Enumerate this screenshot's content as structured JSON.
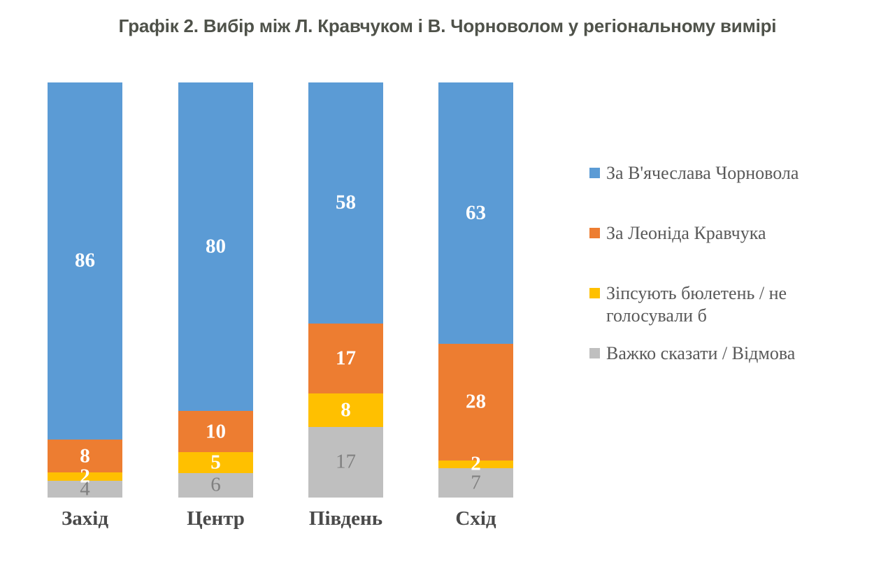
{
  "title": "Графік 2. Вибір між Л. Кравчуком і В. Чорноволом у регіональному вимірі",
  "chart_data": {
    "type": "bar",
    "subtype": "stacked-100",
    "orientation": "vertical",
    "grid": false,
    "axes_visible": false,
    "legend_position": "right",
    "categories": [
      "Захід",
      "Центр",
      "Південь",
      "Схід"
    ],
    "series": [
      {
        "name": "За В'ячеслава Чорновола",
        "color": "#5B9BD5",
        "label_color": "#ffffff",
        "label_weight": "bold",
        "values": [
          86,
          80,
          58,
          63
        ]
      },
      {
        "name": "За Леоніда Кравчука",
        "color": "#ED7D31",
        "label_color": "#ffffff",
        "label_weight": "bold",
        "values": [
          8,
          10,
          17,
          28
        ]
      },
      {
        "name": "Зіпсують бюлетень / не голосували б",
        "color": "#FFC000",
        "label_color": "#ffffff",
        "label_weight": "bold",
        "values": [
          2,
          5,
          8,
          2
        ]
      },
      {
        "name": "Важко сказати / Відмова",
        "color": "#BFBFBF",
        "label_color": "#808080",
        "label_weight": "normal",
        "values": [
          4,
          6,
          17,
          7
        ]
      }
    ]
  }
}
